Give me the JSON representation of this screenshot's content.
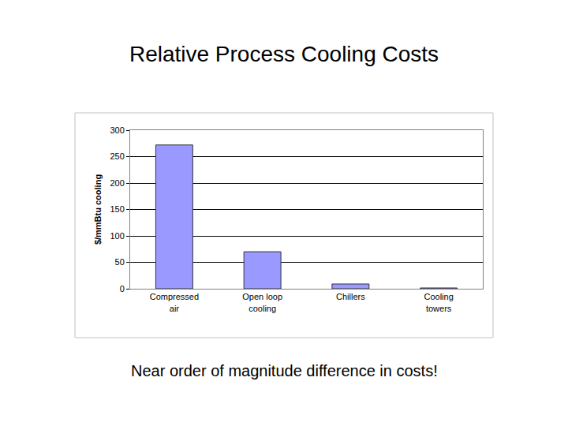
{
  "chart_data": {
    "type": "bar",
    "title": "Relative Process Cooling Costs",
    "ylabel": "$/mmBtu cooling",
    "categories": [
      "Compressed air",
      "Open loop cooling",
      "Chillers",
      "Cooling towers"
    ],
    "values": [
      272,
      70,
      9,
      1.5
    ],
    "color": "#9999ff",
    "ylim": [
      0,
      300
    ],
    "yticks": [
      0,
      50,
      100,
      150,
      200,
      250,
      300
    ],
    "grid": true,
    "annotations": [
      "Near order of magnitude difference in costs!"
    ]
  }
}
